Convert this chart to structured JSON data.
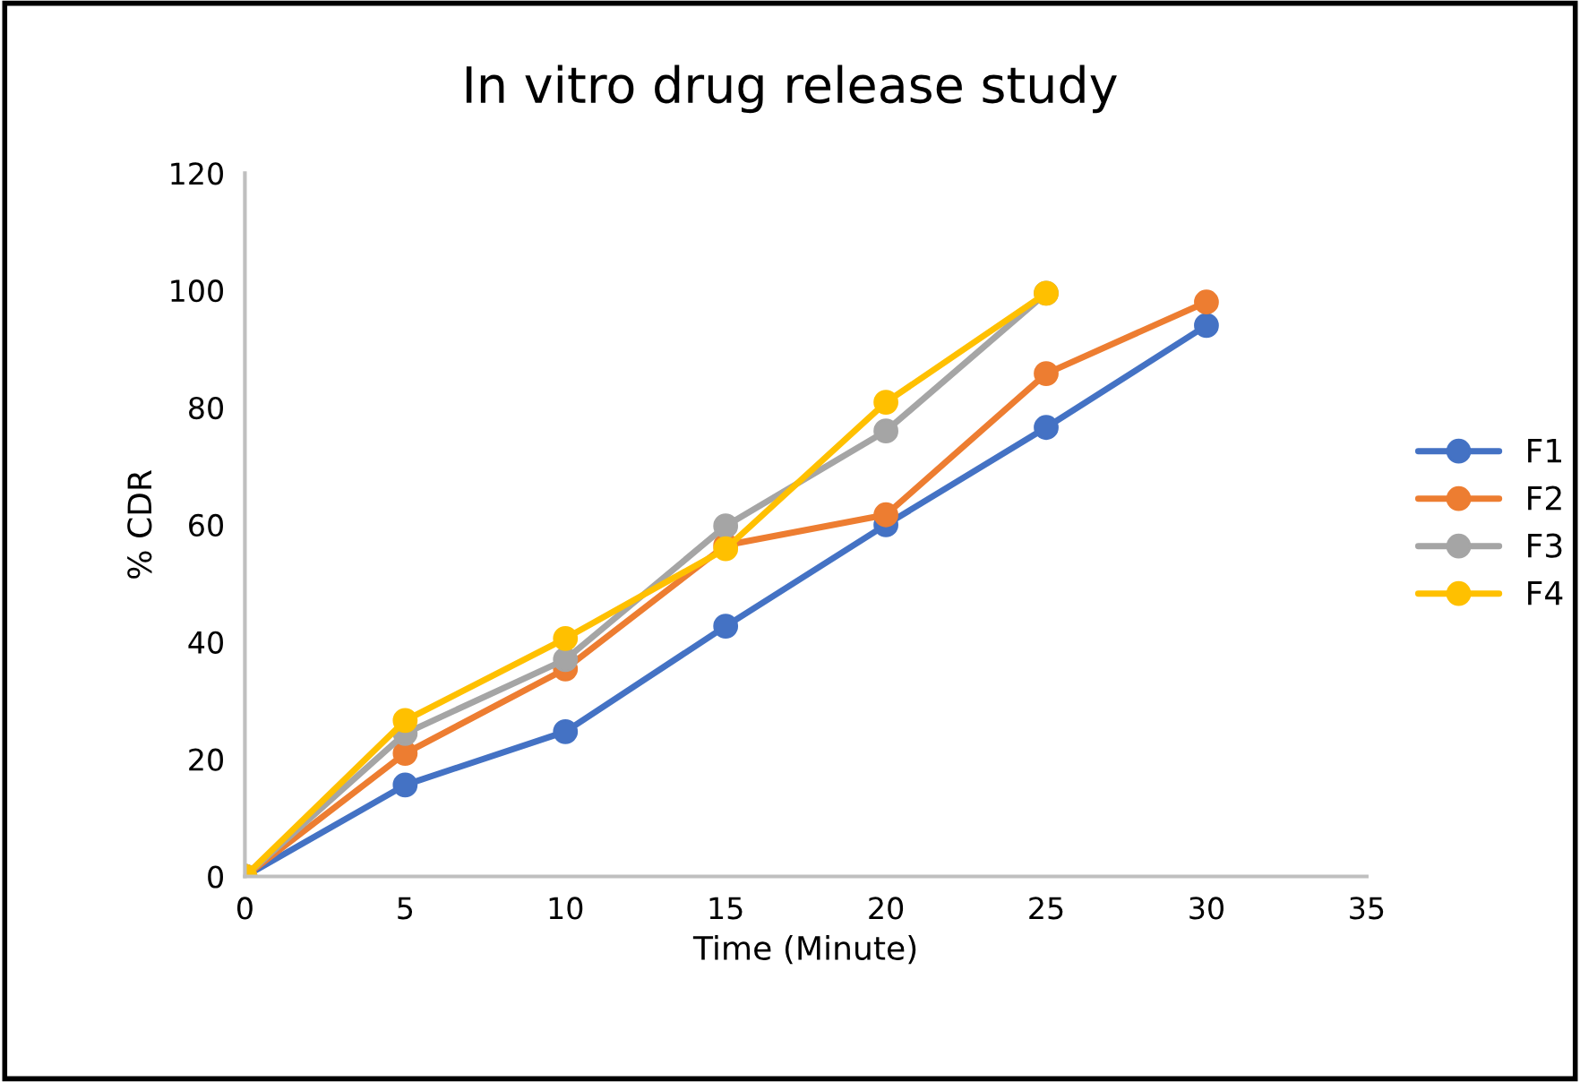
{
  "chart_data": {
    "type": "line",
    "title": "In vitro drug release study",
    "xlabel": "Time (Minute)",
    "ylabel": "% CDR",
    "x": [
      0,
      5,
      10,
      15,
      20,
      25,
      30
    ],
    "series": [
      {
        "name": "F1",
        "color": "#4472c4",
        "values": [
          0,
          15.6,
          24.7,
          42.7,
          60,
          76.6,
          94
        ]
      },
      {
        "name": "F2",
        "color": "#ed7d31",
        "values": [
          0,
          21,
          35.4,
          56.5,
          61.7,
          85.8,
          98
        ]
      },
      {
        "name": "F3",
        "color": "#a5a5a5",
        "values": [
          0,
          24.4,
          37,
          59.8,
          76,
          99.5,
          null
        ]
      },
      {
        "name": "F4",
        "color": "#ffc000",
        "values": [
          0,
          26.6,
          40.6,
          55.9,
          80.9,
          99.5,
          null
        ]
      }
    ],
    "xlim": [
      0,
      35
    ],
    "xticks": [
      0,
      5,
      10,
      15,
      20,
      25,
      30,
      35
    ],
    "ylim": [
      0,
      120
    ],
    "yticks": [
      0,
      20,
      40,
      60,
      80,
      100,
      120
    ],
    "grid": false,
    "legend": "right",
    "marker": "circle",
    "line_style": "solid"
  }
}
